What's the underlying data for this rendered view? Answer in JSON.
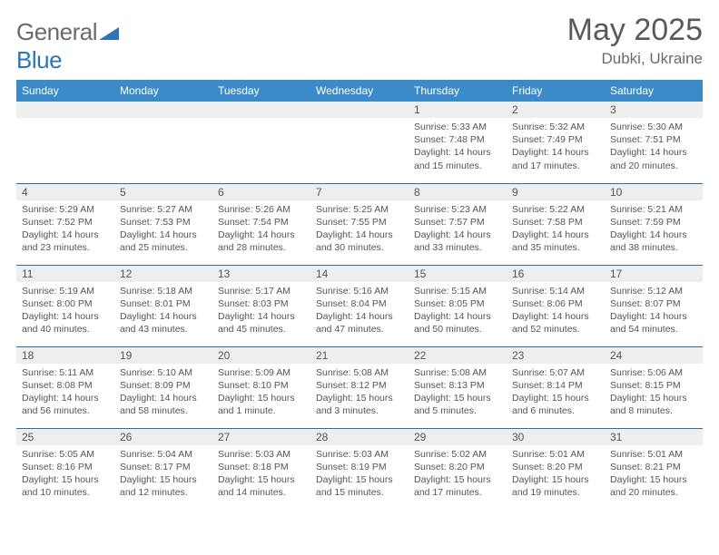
{
  "brand": {
    "part1": "General",
    "part2": "Blue"
  },
  "title": "May 2025",
  "location": "Dubki, Ukraine",
  "colors": {
    "header_bg": "#3b8bc9",
    "row_border": "#2e6da4",
    "daynum_bg": "#eeeeee",
    "text": "#555555",
    "brand_blue": "#2e75b6"
  },
  "weekdays": [
    "Sunday",
    "Monday",
    "Tuesday",
    "Wednesday",
    "Thursday",
    "Friday",
    "Saturday"
  ],
  "weeks": [
    [
      {
        "n": "",
        "sr": "",
        "ss": "",
        "dl": ""
      },
      {
        "n": "",
        "sr": "",
        "ss": "",
        "dl": ""
      },
      {
        "n": "",
        "sr": "",
        "ss": "",
        "dl": ""
      },
      {
        "n": "",
        "sr": "",
        "ss": "",
        "dl": ""
      },
      {
        "n": "1",
        "sr": "Sunrise: 5:33 AM",
        "ss": "Sunset: 7:48 PM",
        "dl": "Daylight: 14 hours and 15 minutes."
      },
      {
        "n": "2",
        "sr": "Sunrise: 5:32 AM",
        "ss": "Sunset: 7:49 PM",
        "dl": "Daylight: 14 hours and 17 minutes."
      },
      {
        "n": "3",
        "sr": "Sunrise: 5:30 AM",
        "ss": "Sunset: 7:51 PM",
        "dl": "Daylight: 14 hours and 20 minutes."
      }
    ],
    [
      {
        "n": "4",
        "sr": "Sunrise: 5:29 AM",
        "ss": "Sunset: 7:52 PM",
        "dl": "Daylight: 14 hours and 23 minutes."
      },
      {
        "n": "5",
        "sr": "Sunrise: 5:27 AM",
        "ss": "Sunset: 7:53 PM",
        "dl": "Daylight: 14 hours and 25 minutes."
      },
      {
        "n": "6",
        "sr": "Sunrise: 5:26 AM",
        "ss": "Sunset: 7:54 PM",
        "dl": "Daylight: 14 hours and 28 minutes."
      },
      {
        "n": "7",
        "sr": "Sunrise: 5:25 AM",
        "ss": "Sunset: 7:55 PM",
        "dl": "Daylight: 14 hours and 30 minutes."
      },
      {
        "n": "8",
        "sr": "Sunrise: 5:23 AM",
        "ss": "Sunset: 7:57 PM",
        "dl": "Daylight: 14 hours and 33 minutes."
      },
      {
        "n": "9",
        "sr": "Sunrise: 5:22 AM",
        "ss": "Sunset: 7:58 PM",
        "dl": "Daylight: 14 hours and 35 minutes."
      },
      {
        "n": "10",
        "sr": "Sunrise: 5:21 AM",
        "ss": "Sunset: 7:59 PM",
        "dl": "Daylight: 14 hours and 38 minutes."
      }
    ],
    [
      {
        "n": "11",
        "sr": "Sunrise: 5:19 AM",
        "ss": "Sunset: 8:00 PM",
        "dl": "Daylight: 14 hours and 40 minutes."
      },
      {
        "n": "12",
        "sr": "Sunrise: 5:18 AM",
        "ss": "Sunset: 8:01 PM",
        "dl": "Daylight: 14 hours and 43 minutes."
      },
      {
        "n": "13",
        "sr": "Sunrise: 5:17 AM",
        "ss": "Sunset: 8:03 PM",
        "dl": "Daylight: 14 hours and 45 minutes."
      },
      {
        "n": "14",
        "sr": "Sunrise: 5:16 AM",
        "ss": "Sunset: 8:04 PM",
        "dl": "Daylight: 14 hours and 47 minutes."
      },
      {
        "n": "15",
        "sr": "Sunrise: 5:15 AM",
        "ss": "Sunset: 8:05 PM",
        "dl": "Daylight: 14 hours and 50 minutes."
      },
      {
        "n": "16",
        "sr": "Sunrise: 5:14 AM",
        "ss": "Sunset: 8:06 PM",
        "dl": "Daylight: 14 hours and 52 minutes."
      },
      {
        "n": "17",
        "sr": "Sunrise: 5:12 AM",
        "ss": "Sunset: 8:07 PM",
        "dl": "Daylight: 14 hours and 54 minutes."
      }
    ],
    [
      {
        "n": "18",
        "sr": "Sunrise: 5:11 AM",
        "ss": "Sunset: 8:08 PM",
        "dl": "Daylight: 14 hours and 56 minutes."
      },
      {
        "n": "19",
        "sr": "Sunrise: 5:10 AM",
        "ss": "Sunset: 8:09 PM",
        "dl": "Daylight: 14 hours and 58 minutes."
      },
      {
        "n": "20",
        "sr": "Sunrise: 5:09 AM",
        "ss": "Sunset: 8:10 PM",
        "dl": "Daylight: 15 hours and 1 minute."
      },
      {
        "n": "21",
        "sr": "Sunrise: 5:08 AM",
        "ss": "Sunset: 8:12 PM",
        "dl": "Daylight: 15 hours and 3 minutes."
      },
      {
        "n": "22",
        "sr": "Sunrise: 5:08 AM",
        "ss": "Sunset: 8:13 PM",
        "dl": "Daylight: 15 hours and 5 minutes."
      },
      {
        "n": "23",
        "sr": "Sunrise: 5:07 AM",
        "ss": "Sunset: 8:14 PM",
        "dl": "Daylight: 15 hours and 6 minutes."
      },
      {
        "n": "24",
        "sr": "Sunrise: 5:06 AM",
        "ss": "Sunset: 8:15 PM",
        "dl": "Daylight: 15 hours and 8 minutes."
      }
    ],
    [
      {
        "n": "25",
        "sr": "Sunrise: 5:05 AM",
        "ss": "Sunset: 8:16 PM",
        "dl": "Daylight: 15 hours and 10 minutes."
      },
      {
        "n": "26",
        "sr": "Sunrise: 5:04 AM",
        "ss": "Sunset: 8:17 PM",
        "dl": "Daylight: 15 hours and 12 minutes."
      },
      {
        "n": "27",
        "sr": "Sunrise: 5:03 AM",
        "ss": "Sunset: 8:18 PM",
        "dl": "Daylight: 15 hours and 14 minutes."
      },
      {
        "n": "28",
        "sr": "Sunrise: 5:03 AM",
        "ss": "Sunset: 8:19 PM",
        "dl": "Daylight: 15 hours and 15 minutes."
      },
      {
        "n": "29",
        "sr": "Sunrise: 5:02 AM",
        "ss": "Sunset: 8:20 PM",
        "dl": "Daylight: 15 hours and 17 minutes."
      },
      {
        "n": "30",
        "sr": "Sunrise: 5:01 AM",
        "ss": "Sunset: 8:20 PM",
        "dl": "Daylight: 15 hours and 19 minutes."
      },
      {
        "n": "31",
        "sr": "Sunrise: 5:01 AM",
        "ss": "Sunset: 8:21 PM",
        "dl": "Daylight: 15 hours and 20 minutes."
      }
    ]
  ]
}
